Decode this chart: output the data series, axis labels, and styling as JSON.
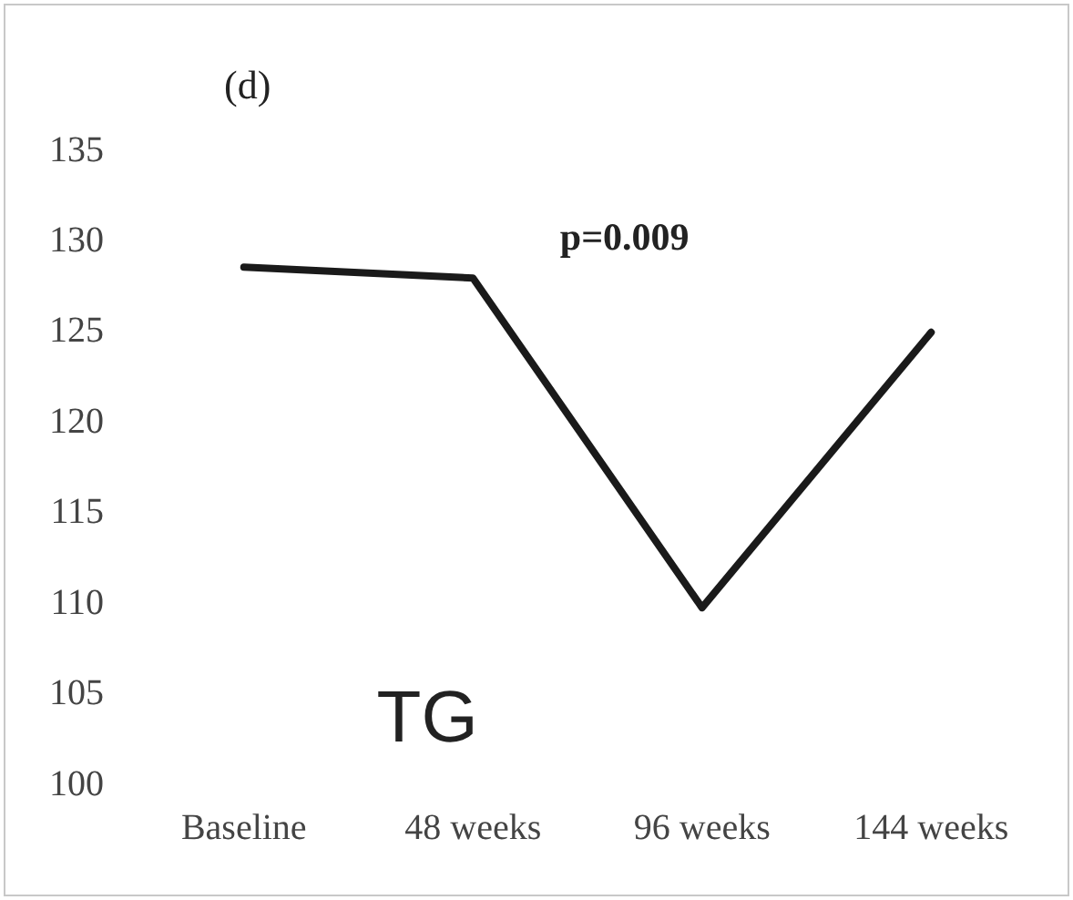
{
  "chart_data": {
    "type": "line",
    "title": "(d)",
    "categories": [
      "Baseline",
      "48 weeks",
      "96 weeks",
      "144 weeks"
    ],
    "series": [
      {
        "color": "#1a1a1a",
        "values": [
          128.6,
          128.0,
          109.8,
          125.0
        ]
      }
    ],
    "ylim": [
      100,
      135
    ],
    "yticks": [
      100,
      105,
      110,
      115,
      120,
      125,
      130,
      135
    ],
    "grid": false,
    "legend": false,
    "marker": "none",
    "line_style": "solid",
    "annotations": [
      "p=0.009",
      "TG"
    ]
  }
}
